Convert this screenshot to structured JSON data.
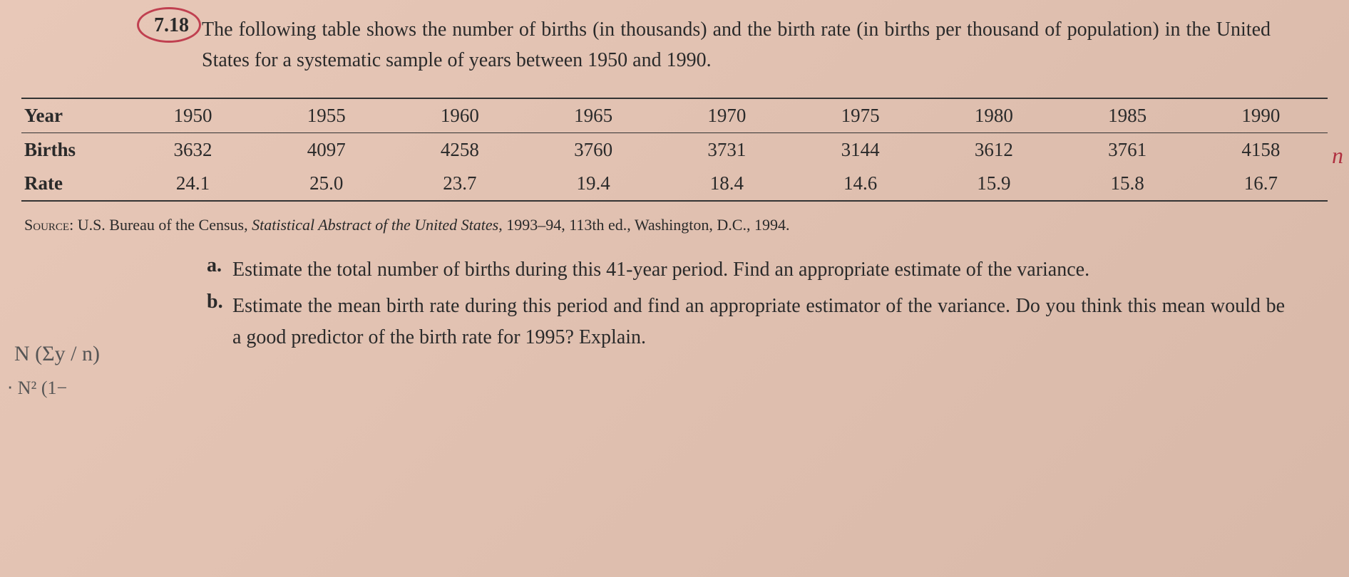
{
  "problem": {
    "number": "7.18",
    "text": "The following table shows the number of births (in thousands) and the birth rate (in births per thousand of population) in the United States for a systematic sample of years between 1950 and 1990."
  },
  "table": {
    "columns": [
      "Year",
      "1950",
      "1955",
      "1960",
      "1965",
      "1970",
      "1975",
      "1980",
      "1985",
      "1990"
    ],
    "rows": [
      {
        "label": "Births",
        "cells": [
          "3632",
          "4097",
          "4258",
          "3760",
          "3731",
          "3144",
          "3612",
          "3761",
          "4158"
        ]
      },
      {
        "label": "Rate",
        "cells": [
          "24.1",
          "25.0",
          "23.7",
          "19.4",
          "18.4",
          "14.6",
          "15.9",
          "15.8",
          "16.7"
        ]
      }
    ],
    "col_widths_pct": [
      8,
      10.2,
      10.2,
      10.2,
      10.2,
      10.2,
      10.2,
      10.2,
      10.2,
      10.2
    ],
    "border_color": "#333333"
  },
  "source": {
    "label": "Source:",
    "text_before": " U.S. Bureau of the Census, ",
    "italic": "Statistical Abstract of the United States",
    "text_after": ", 1993–94, 113th ed., Washington, D.C., 1994."
  },
  "questions": [
    {
      "letter": "a.",
      "text": "Estimate the total number of births during this 41-year period. Find an appropriate estimate of the variance."
    },
    {
      "letter": "b.",
      "text": "Estimate the mean birth rate during this period and find an appropriate estimator of the variance. Do you think this mean would be a good predictor of the birth rate for 1995? Explain."
    }
  ],
  "annotations": {
    "pencil1": "N (Σy / n)",
    "pencil2": "⋅ N² (1−",
    "margin_right": "n"
  },
  "colors": {
    "page_bg_top": "#e8c8b8",
    "page_bg_bottom": "#d8b8a8",
    "text": "#2a2a2a",
    "circle": "#c04050",
    "pencil": "#555555"
  },
  "fontsize": {
    "body": 28,
    "table": 27,
    "source": 22
  }
}
